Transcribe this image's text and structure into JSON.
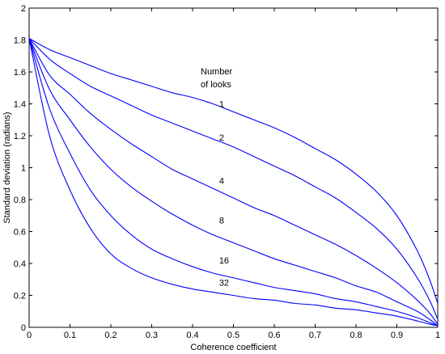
{
  "chart_data": {
    "type": "line",
    "xlabel": "Coherence coefficient",
    "ylabel": "Standard deviation (radians)",
    "xlim": [
      0,
      1
    ],
    "ylim": [
      0,
      2
    ],
    "xticks": [
      0,
      0.1,
      0.2,
      0.3,
      0.4,
      0.5,
      0.6,
      0.7,
      0.8,
      0.9,
      1
    ],
    "yticks": [
      0,
      0.2,
      0.4,
      0.6,
      0.8,
      1,
      1.2,
      1.4,
      1.6,
      1.8,
      2
    ],
    "grid": false,
    "line_color": "#0000ff",
    "annotation": [
      "Number",
      "of looks"
    ],
    "x": [
      0,
      0.05,
      0.1,
      0.15,
      0.2,
      0.25,
      0.3,
      0.35,
      0.4,
      0.45,
      0.5,
      0.55,
      0.6,
      0.65,
      0.7,
      0.75,
      0.8,
      0.85,
      0.9,
      0.95,
      0.98,
      1
    ],
    "series": [
      {
        "label": "1",
        "label_x": 0.465,
        "label_y": 1.4,
        "values": [
          1.81,
          1.74,
          1.69,
          1.64,
          1.59,
          1.55,
          1.51,
          1.47,
          1.44,
          1.4,
          1.35,
          1.3,
          1.25,
          1.19,
          1.12,
          1.05,
          0.96,
          0.85,
          0.7,
          0.48,
          0.3,
          0.15
        ]
      },
      {
        "label": "2",
        "label_x": 0.465,
        "label_y": 1.19,
        "values": [
          1.81,
          1.68,
          1.59,
          1.51,
          1.45,
          1.39,
          1.33,
          1.28,
          1.23,
          1.18,
          1.13,
          1.07,
          1.01,
          0.95,
          0.88,
          0.81,
          0.72,
          0.62,
          0.49,
          0.31,
          0.17,
          0.05
        ]
      },
      {
        "label": "4",
        "label_x": 0.465,
        "label_y": 0.92,
        "values": [
          1.81,
          1.58,
          1.46,
          1.34,
          1.24,
          1.15,
          1.07,
          0.99,
          0.93,
          0.87,
          0.81,
          0.75,
          0.7,
          0.64,
          0.58,
          0.52,
          0.45,
          0.37,
          0.28,
          0.17,
          0.09,
          0.02
        ]
      },
      {
        "label": "8",
        "label_x": 0.465,
        "label_y": 0.67,
        "values": [
          1.81,
          1.49,
          1.3,
          1.13,
          0.99,
          0.88,
          0.79,
          0.71,
          0.64,
          0.58,
          0.53,
          0.48,
          0.43,
          0.39,
          0.35,
          0.31,
          0.26,
          0.22,
          0.16,
          0.1,
          0.05,
          0.01
        ]
      },
      {
        "label": "16",
        "label_x": 0.465,
        "label_y": 0.42,
        "values": [
          1.81,
          1.37,
          1.09,
          0.86,
          0.7,
          0.58,
          0.49,
          0.43,
          0.38,
          0.34,
          0.31,
          0.28,
          0.25,
          0.23,
          0.21,
          0.18,
          0.16,
          0.13,
          0.1,
          0.06,
          0.03,
          0.01
        ]
      },
      {
        "label": "32",
        "label_x": 0.465,
        "label_y": 0.28,
        "values": [
          1.81,
          1.2,
          0.86,
          0.62,
          0.46,
          0.37,
          0.31,
          0.27,
          0.24,
          0.22,
          0.2,
          0.18,
          0.17,
          0.15,
          0.14,
          0.12,
          0.11,
          0.09,
          0.07,
          0.04,
          0.02,
          0.01
        ]
      }
    ]
  }
}
